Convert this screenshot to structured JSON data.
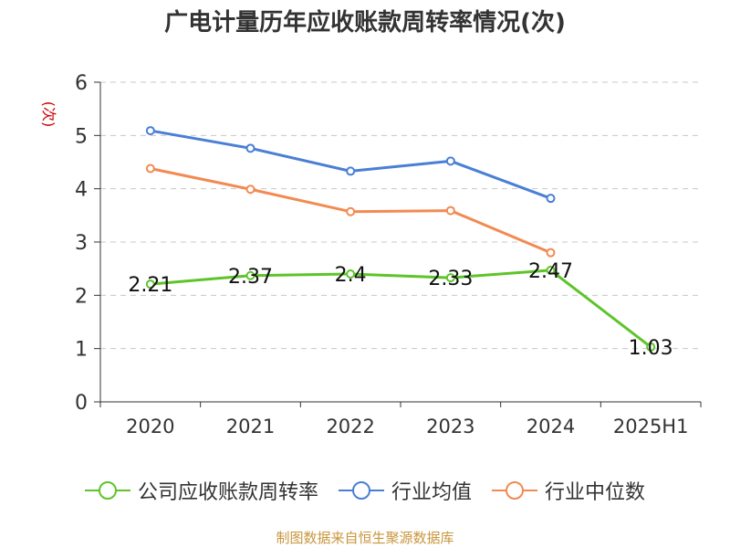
{
  "chart_data": {
    "type": "line",
    "title": "广电计量历年应收账款周转率情况(次)",
    "ylabel": "(次)",
    "xlabel": "",
    "categories": [
      "2020",
      "2021",
      "2022",
      "2023",
      "2024",
      "2025H1"
    ],
    "ylim": [
      0,
      6
    ],
    "yticks": [
      "0",
      "1",
      "2",
      "3",
      "4",
      "5",
      "6"
    ],
    "grid": true,
    "legend_position": "bottom",
    "series": [
      {
        "name": "公司应收账款周转率",
        "color": "#5ec42a",
        "values": [
          2.21,
          2.37,
          2.4,
          2.33,
          2.47,
          1.03
        ],
        "labels": [
          "2.21",
          "2.37",
          "2.4",
          "2.33",
          "2.47",
          "1.03"
        ]
      },
      {
        "name": "行业均值",
        "color": "#4a7fd6",
        "values": [
          5.09,
          4.76,
          4.33,
          4.52,
          3.82,
          null
        ]
      },
      {
        "name": "行业中位数",
        "color": "#f28a52",
        "values": [
          4.38,
          3.99,
          3.57,
          3.59,
          2.8,
          null
        ]
      }
    ]
  },
  "footer": "制图数据来自恒生聚源数据库",
  "colors": {
    "ylabel": "#cc0000",
    "grid": "#c8c8c8",
    "axis": "#333333"
  }
}
